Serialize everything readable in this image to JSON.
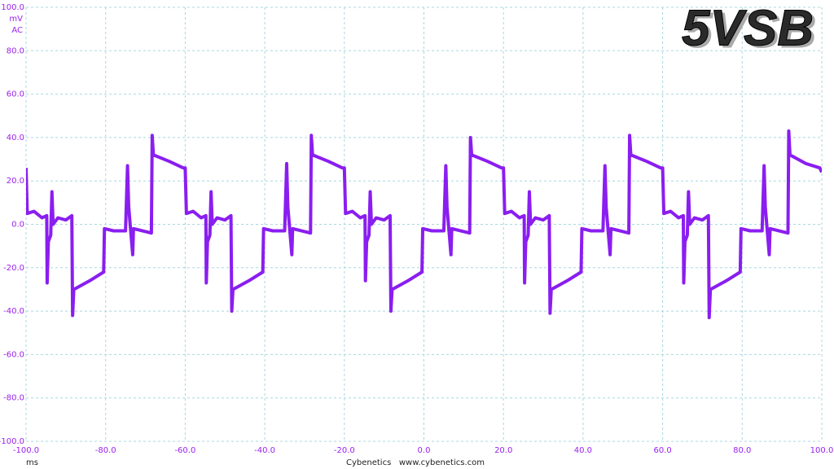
{
  "chart_data": {
    "type": "line",
    "title": "5VSB",
    "y_unit": "mV",
    "coupling": "AC",
    "x_unit": "ms",
    "footer": "Cybenetics   www.cybenetics.com",
    "color": "#8a1ef0",
    "grid": true,
    "xlim": [
      -100,
      100
    ],
    "ylim": [
      -100,
      100
    ],
    "xticks": [
      {
        "value": -100,
        "label": "-100.0"
      },
      {
        "value": -80,
        "label": "-80.0"
      },
      {
        "value": -60,
        "label": "-60.0"
      },
      {
        "value": -40,
        "label": "-40.0"
      },
      {
        "value": -20,
        "label": "-20.0"
      },
      {
        "value": 0,
        "label": "0.0"
      },
      {
        "value": 20,
        "label": "20.0"
      },
      {
        "value": 40,
        "label": "40.0"
      },
      {
        "value": 60,
        "label": "60.0"
      },
      {
        "value": 80,
        "label": "80.0"
      },
      {
        "value": 100,
        "label": "100.0"
      }
    ],
    "yticks": [
      {
        "value": -100,
        "label": "-100.0"
      },
      {
        "value": -80,
        "label": "-80.0"
      },
      {
        "value": -60,
        "label": "-60.0"
      },
      {
        "value": -40,
        "label": "-40.0"
      },
      {
        "value": -20,
        "label": "-20.0"
      },
      {
        "value": 0,
        "label": "0.0"
      },
      {
        "value": 20,
        "label": "20.0"
      },
      {
        "value": 40,
        "label": "40.0"
      },
      {
        "value": 60,
        "label": "60.0"
      },
      {
        "value": 80,
        "label": "80.0"
      },
      {
        "value": 100,
        "label": "100.0"
      }
    ],
    "x": [
      -100,
      -99.7,
      -98,
      -96,
      -94.8,
      -94.7,
      -94.4,
      -93.8,
      -93.5,
      -93.2,
      -92,
      -90,
      -88.5,
      -88.3,
      -88,
      -86,
      -84,
      -80.5,
      -80.3,
      -78,
      -75,
      -74.5,
      -74.2,
      -73.2,
      -73,
      -68.5,
      -68.3,
      -68,
      -64,
      -60.5,
      -60,
      -59.7,
      -58,
      -56,
      -54.8,
      -54.7,
      -54.4,
      -53.8,
      -53.5,
      -53.2,
      -52,
      -50,
      -48.5,
      -48.3,
      -48,
      -46,
      -44,
      -40.5,
      -40.3,
      -38,
      -35,
      -34.5,
      -34.2,
      -33.2,
      -33,
      -28.5,
      -28.3,
      -28,
      -24,
      -20.5,
      -20,
      -19.7,
      -18,
      -16,
      -14.8,
      -14.7,
      -14.4,
      -13.8,
      -13.5,
      -13.2,
      -12,
      -10,
      -8.5,
      -8.3,
      -8,
      -6,
      -4,
      -0.5,
      -0.3,
      2,
      5,
      5.5,
      5.8,
      6.8,
      7,
      11.5,
      11.7,
      12,
      16,
      19.5,
      20,
      20.3,
      22,
      24,
      25.2,
      25.3,
      25.6,
      26.2,
      26.5,
      26.8,
      28,
      30,
      31.5,
      31.7,
      32,
      34,
      36,
      39.5,
      39.7,
      42,
      45,
      45.5,
      45.8,
      46.8,
      47,
      51.5,
      51.7,
      52,
      56,
      59.5,
      60,
      60.3,
      62,
      64,
      65.2,
      65.3,
      65.6,
      66.2,
      66.5,
      66.8,
      68,
      70,
      71.5,
      71.7,
      72,
      74,
      76,
      79.5,
      79.7,
      82,
      85,
      85.5,
      85.8,
      86.8,
      87,
      91.5,
      91.7,
      92,
      96,
      99.5,
      100
    ],
    "values": [
      26,
      5,
      6,
      3,
      4,
      -27,
      -8,
      -5,
      15,
      0,
      3,
      2,
      4,
      -42,
      -30,
      -28,
      -26,
      -22,
      -2,
      -3,
      -3,
      27,
      8,
      -14,
      -2,
      -4,
      41,
      32,
      29,
      26,
      26,
      5,
      6,
      3,
      4,
      -27,
      -8,
      -5,
      15,
      0,
      3,
      2,
      4,
      -40,
      -30,
      -28,
      -26,
      -22,
      -2,
      -3,
      -3,
      28,
      8,
      -14,
      -2,
      -4,
      41,
      32,
      29,
      26,
      26,
      5,
      6,
      3,
      4,
      -26,
      -8,
      -5,
      15,
      0,
      3,
      2,
      4,
      -40,
      -30,
      -28,
      -26,
      -22,
      -2,
      -3,
      -3,
      27,
      8,
      -14,
      -2,
      -4,
      40,
      32,
      29,
      26,
      26,
      5,
      6,
      3,
      4,
      -27,
      -8,
      -5,
      15,
      0,
      3,
      2,
      4,
      -41,
      -30,
      -28,
      -26,
      -22,
      -2,
      -3,
      -3,
      27,
      8,
      -14,
      -2,
      -4,
      41,
      32,
      29,
      26,
      26,
      5,
      6,
      3,
      4,
      -27,
      -8,
      -5,
      15,
      0,
      3,
      2,
      4,
      -43,
      -30,
      -28,
      -26,
      -22,
      -2,
      -3,
      -3,
      27,
      8,
      -14,
      -2,
      -4,
      43,
      32,
      28,
      26,
      24
    ]
  }
}
